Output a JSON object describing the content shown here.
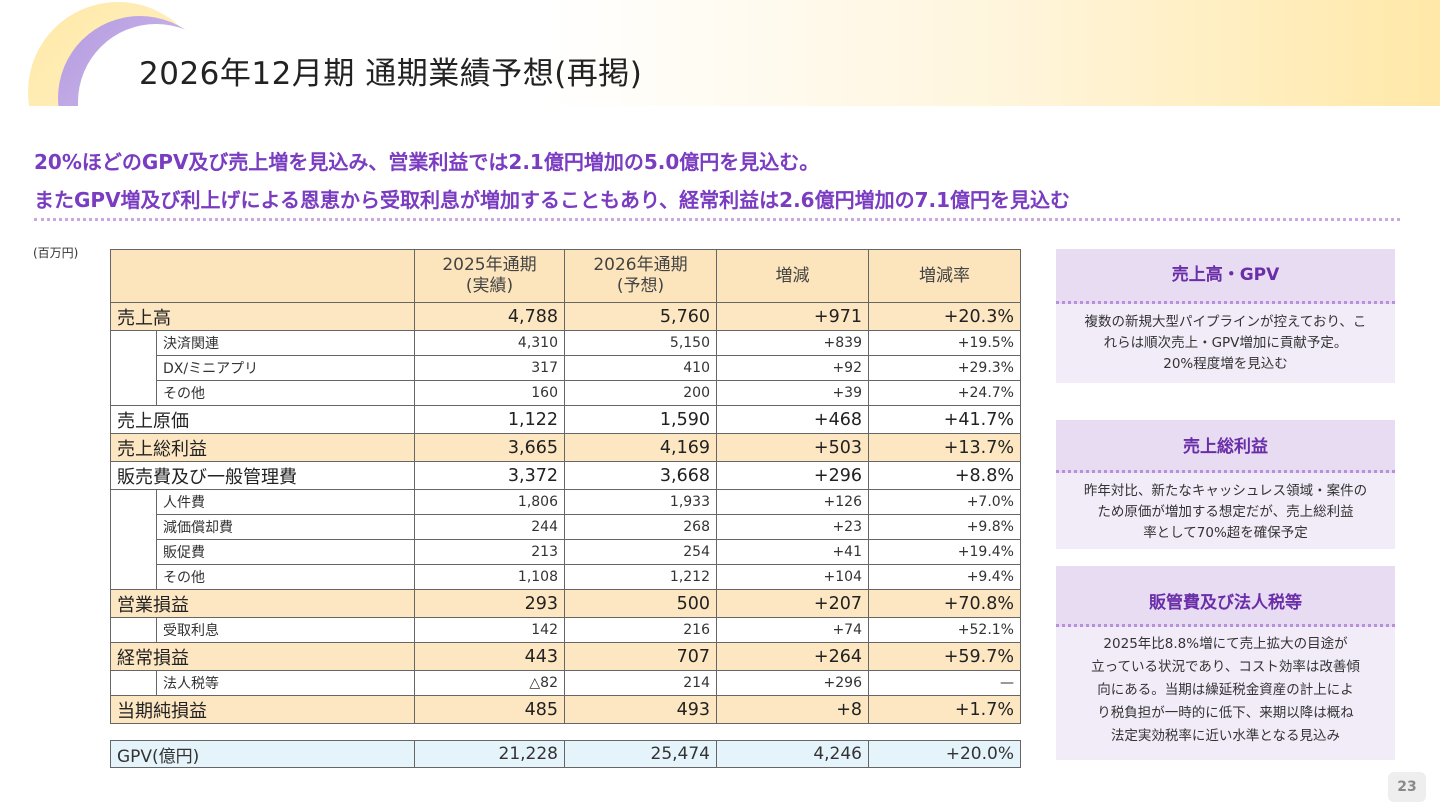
{
  "title": "2026年12月期 通期業績予想(再掲)",
  "lead": [
    "20%ほどのGPV及び売上増を見込み、営業利益では2.1億円増加の5.0億円を見込む。",
    "またGPV増及び利上げによる恩恵から受取利息が増加することもあり、経常利益は2.6億円増加の7.1億円を見込む"
  ],
  "unit": "(百万円)",
  "table": {
    "headers": [
      "2025年通期\n(実績)",
      "2026年通期\n(予想)",
      "増減",
      "増減率"
    ],
    "rows": [
      {
        "label": "売上高",
        "values": [
          "4,788",
          "5,760",
          "+971",
          "+20.3%"
        ],
        "type": "major",
        "hl": true
      },
      {
        "label": "決済関連",
        "values": [
          "4,310",
          "5,150",
          "+839",
          "+19.5%"
        ],
        "type": "minor"
      },
      {
        "label": "DX/ミニアプリ",
        "values": [
          "317",
          "410",
          "+92",
          "+29.3%"
        ],
        "type": "minor"
      },
      {
        "label": "その他",
        "values": [
          "160",
          "200",
          "+39",
          "+24.7%"
        ],
        "type": "minor"
      },
      {
        "label": "売上原価",
        "values": [
          "1,122",
          "1,590",
          "+468",
          "+41.7%"
        ],
        "type": "major",
        "hl": false
      },
      {
        "label": "売上総利益",
        "values": [
          "3,665",
          "4,169",
          "+503",
          "+13.7%"
        ],
        "type": "major",
        "hl": true
      },
      {
        "label": "販売費及び一般管理費",
        "values": [
          "3,372",
          "3,668",
          "+296",
          "+8.8%"
        ],
        "type": "major",
        "hl": false
      },
      {
        "label": "人件費",
        "values": [
          "1,806",
          "1,933",
          "+126",
          "+7.0%"
        ],
        "type": "minor"
      },
      {
        "label": "減価償却費",
        "values": [
          "244",
          "268",
          "+23",
          "+9.8%"
        ],
        "type": "minor"
      },
      {
        "label": "販促費",
        "values": [
          "213",
          "254",
          "+41",
          "+19.4%"
        ],
        "type": "minor"
      },
      {
        "label": "その他",
        "values": [
          "1,108",
          "1,212",
          "+104",
          "+9.4%"
        ],
        "type": "minor"
      },
      {
        "label": "営業損益",
        "values": [
          "293",
          "500",
          "+207",
          "+70.8%"
        ],
        "type": "major",
        "hl": true
      },
      {
        "label": "受取利息",
        "values": [
          "142",
          "216",
          "+74",
          "+52.1%"
        ],
        "type": "minor"
      },
      {
        "label": "経常損益",
        "values": [
          "443",
          "707",
          "+264",
          "+59.7%"
        ],
        "type": "major",
        "hl": true
      },
      {
        "label": "法人税等",
        "values": [
          "△82",
          "214",
          "+296",
          "—"
        ],
        "type": "minor"
      },
      {
        "label": "当期純損益",
        "values": [
          "485",
          "493",
          "+8",
          "+1.7%"
        ],
        "type": "major",
        "hl": true
      }
    ],
    "gpv": {
      "label": "GPV(億円)",
      "values": [
        "21,228",
        "25,474",
        "4,246",
        "+20.0%"
      ]
    }
  },
  "cards": [
    {
      "heading": "売上高・GPV",
      "body": [
        "複数の新規大型パイプラインが控えており、こ",
        "れらは順次売上・GPV増加に貢献予定。",
        "20%程度増を見込む"
      ]
    },
    {
      "heading": "売上総利益",
      "body": [
        "昨年対比、新たなキャッシュレス領域・案件の",
        "ため原価が増加する想定だが、売上総利益",
        "率として70%超を確保予定"
      ]
    },
    {
      "heading": "販管費及び法人税等",
      "body": [
        "2025年比8.8%増にて売上拡大の目途が",
        "立っている状況であり、コスト効率は改善傾",
        "向にある。当期は繰延税金資産の計上によ",
        "り税負担が一時的に低下、来期以降は概ね",
        "法定実効税率に近い水準となる見込み"
      ]
    }
  ],
  "page_number": "23",
  "colors": {
    "accent": "#7a3cc0",
    "header_fill": "#fce5bd",
    "highlight_row": "#fde7c3",
    "gpv_row": "#e5f3fb",
    "card_head": "#e8dcf2",
    "card_body": "#f2ecf8"
  }
}
